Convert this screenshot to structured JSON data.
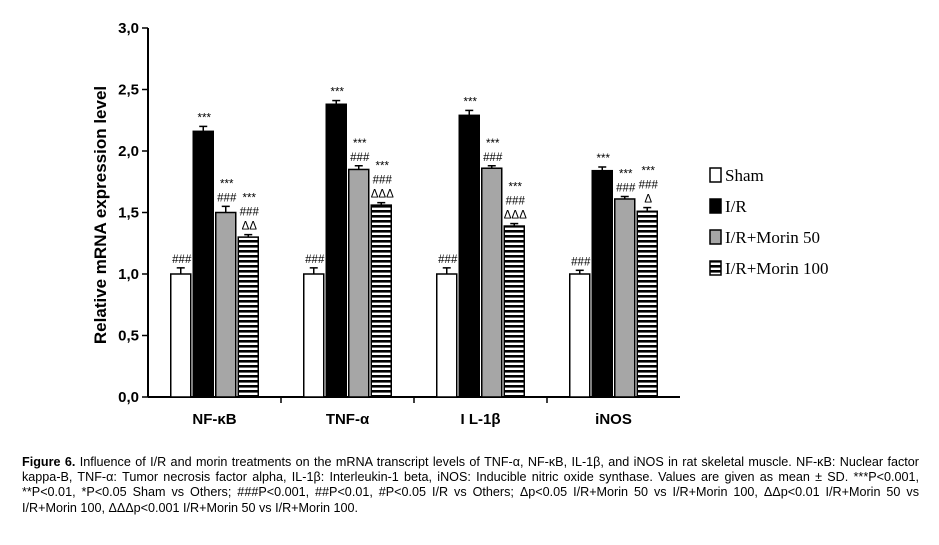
{
  "chart_data": {
    "type": "bar",
    "title": "",
    "xlabel": "",
    "ylabel": "Relative mRNA expression level",
    "ylim": [
      0,
      3.0
    ],
    "y_ticks": [
      "0,0",
      "0,5",
      "1,0",
      "1,5",
      "2,0",
      "2,5",
      "3,0"
    ],
    "categories": [
      "NF-κB",
      "TNF-α",
      "I L-1β",
      "iNOS"
    ],
    "legend_position": "right",
    "grid": false,
    "series": [
      {
        "name": "Sham",
        "pattern": "white",
        "values": [
          1.0,
          1.0,
          1.0,
          1.0
        ],
        "errors": [
          0.05,
          0.05,
          0.05,
          0.03
        ],
        "annotations": [
          [
            "###"
          ],
          [
            "###"
          ],
          [
            "###"
          ],
          [
            "###"
          ]
        ]
      },
      {
        "name": "I/R",
        "pattern": "black",
        "values": [
          2.16,
          2.38,
          2.29,
          1.84
        ],
        "errors": [
          0.04,
          0.03,
          0.04,
          0.03
        ],
        "annotations": [
          [
            "***"
          ],
          [
            "***"
          ],
          [
            "***"
          ],
          [
            "***"
          ]
        ]
      },
      {
        "name": "I/R+Morin 50",
        "pattern": "gray",
        "values": [
          1.5,
          1.85,
          1.86,
          1.61
        ],
        "errors": [
          0.05,
          0.03,
          0.02,
          0.02
        ],
        "annotations": [
          [
            "***",
            "###"
          ],
          [
            "***",
            "###"
          ],
          [
            "***",
            "###"
          ],
          [
            "***",
            "###"
          ]
        ]
      },
      {
        "name": "I/R+Morin 100",
        "pattern": "stripes",
        "values": [
          1.3,
          1.56,
          1.39,
          1.51
        ],
        "errors": [
          0.02,
          0.02,
          0.02,
          0.03
        ],
        "annotations": [
          [
            "***",
            "###",
            "ΔΔ"
          ],
          [
            "***",
            "###",
            "ΔΔΔ"
          ],
          [
            "***",
            "###",
            "ΔΔΔ"
          ],
          [
            "***",
            "###",
            "Δ"
          ]
        ]
      }
    ]
  },
  "caption": {
    "label": "Figure 6.",
    "text": "Influence of I/R and morin treatments on the mRNA transcript levels of TNF-α, NF-κB, IL-1β, and iNOS in rat skeletal muscle. NF-κB: Nuclear factor kappa-B, TNF-α: Tumor necrosis factor alpha, IL-1β: Interleukin-1 beta, iNOS: Inducible nitric oxide synthase. Values are given as mean ± SD. ***P<0.001, **P<0.01, *P<0.05 Sham vs Others; ###P<0.001, ##P<0.01, #P<0.05 I/R vs Others; Δp<0.05 I/R+Morin 50 vs I/R+Morin 100, ΔΔp<0.01 I/R+Morin 50 vs I/R+Morin 100, ΔΔΔp<0.001 I/R+Morin 50 vs I/R+Morin 100."
  }
}
